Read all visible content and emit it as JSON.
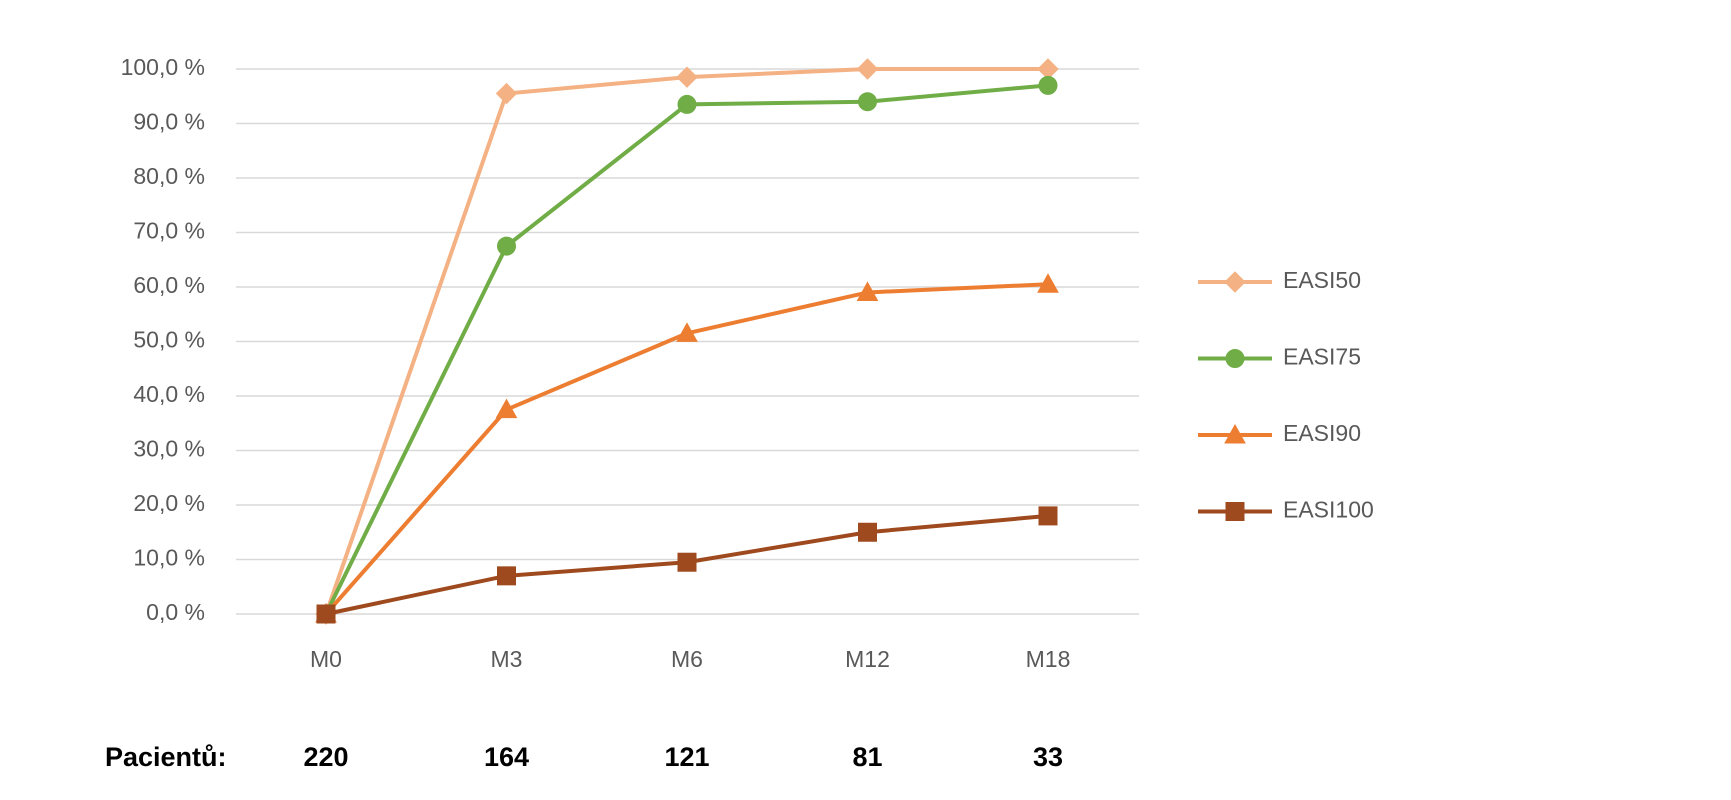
{
  "chart_data": {
    "type": "line",
    "categories": [
      "M0",
      "M3",
      "M6",
      "M12",
      "M18"
    ],
    "series": [
      {
        "name": "EASI50",
        "color": "#f4b183",
        "marker": "diamond",
        "values": [
          0,
          95.5,
          98.5,
          100,
          100
        ]
      },
      {
        "name": "EASI75",
        "color": "#70ad47",
        "marker": "circle",
        "values": [
          0,
          67.5,
          93.5,
          94,
          97
        ]
      },
      {
        "name": "EASI90",
        "color": "#ed7d31",
        "marker": "triangle",
        "values": [
          0,
          37.5,
          51.5,
          59,
          60.5
        ]
      },
      {
        "name": "EASI100",
        "color": "#9e4a1e",
        "marker": "square",
        "values": [
          0,
          7,
          9.5,
          15,
          18
        ]
      }
    ],
    "ylim": [
      0,
      100
    ],
    "yticks": [
      {
        "value": 0,
        "label": "0,0 %"
      },
      {
        "value": 10,
        "label": "10,0 %"
      },
      {
        "value": 20,
        "label": "20,0 %"
      },
      {
        "value": 30,
        "label": "30,0 %"
      },
      {
        "value": 40,
        "label": "40,0 %"
      },
      {
        "value": 50,
        "label": "50,0 %"
      },
      {
        "value": 60,
        "label": "60,0 %"
      },
      {
        "value": 70,
        "label": "70,0 %"
      },
      {
        "value": 80,
        "label": "80,0 %"
      },
      {
        "value": 90,
        "label": "90,0 %"
      },
      {
        "value": 100,
        "label": "100,0 %"
      }
    ],
    "grid": true,
    "legend": "right",
    "patients": {
      "label": "Pacientů:",
      "values": [
        "220",
        "164",
        "121",
        "81",
        "33"
      ]
    }
  }
}
